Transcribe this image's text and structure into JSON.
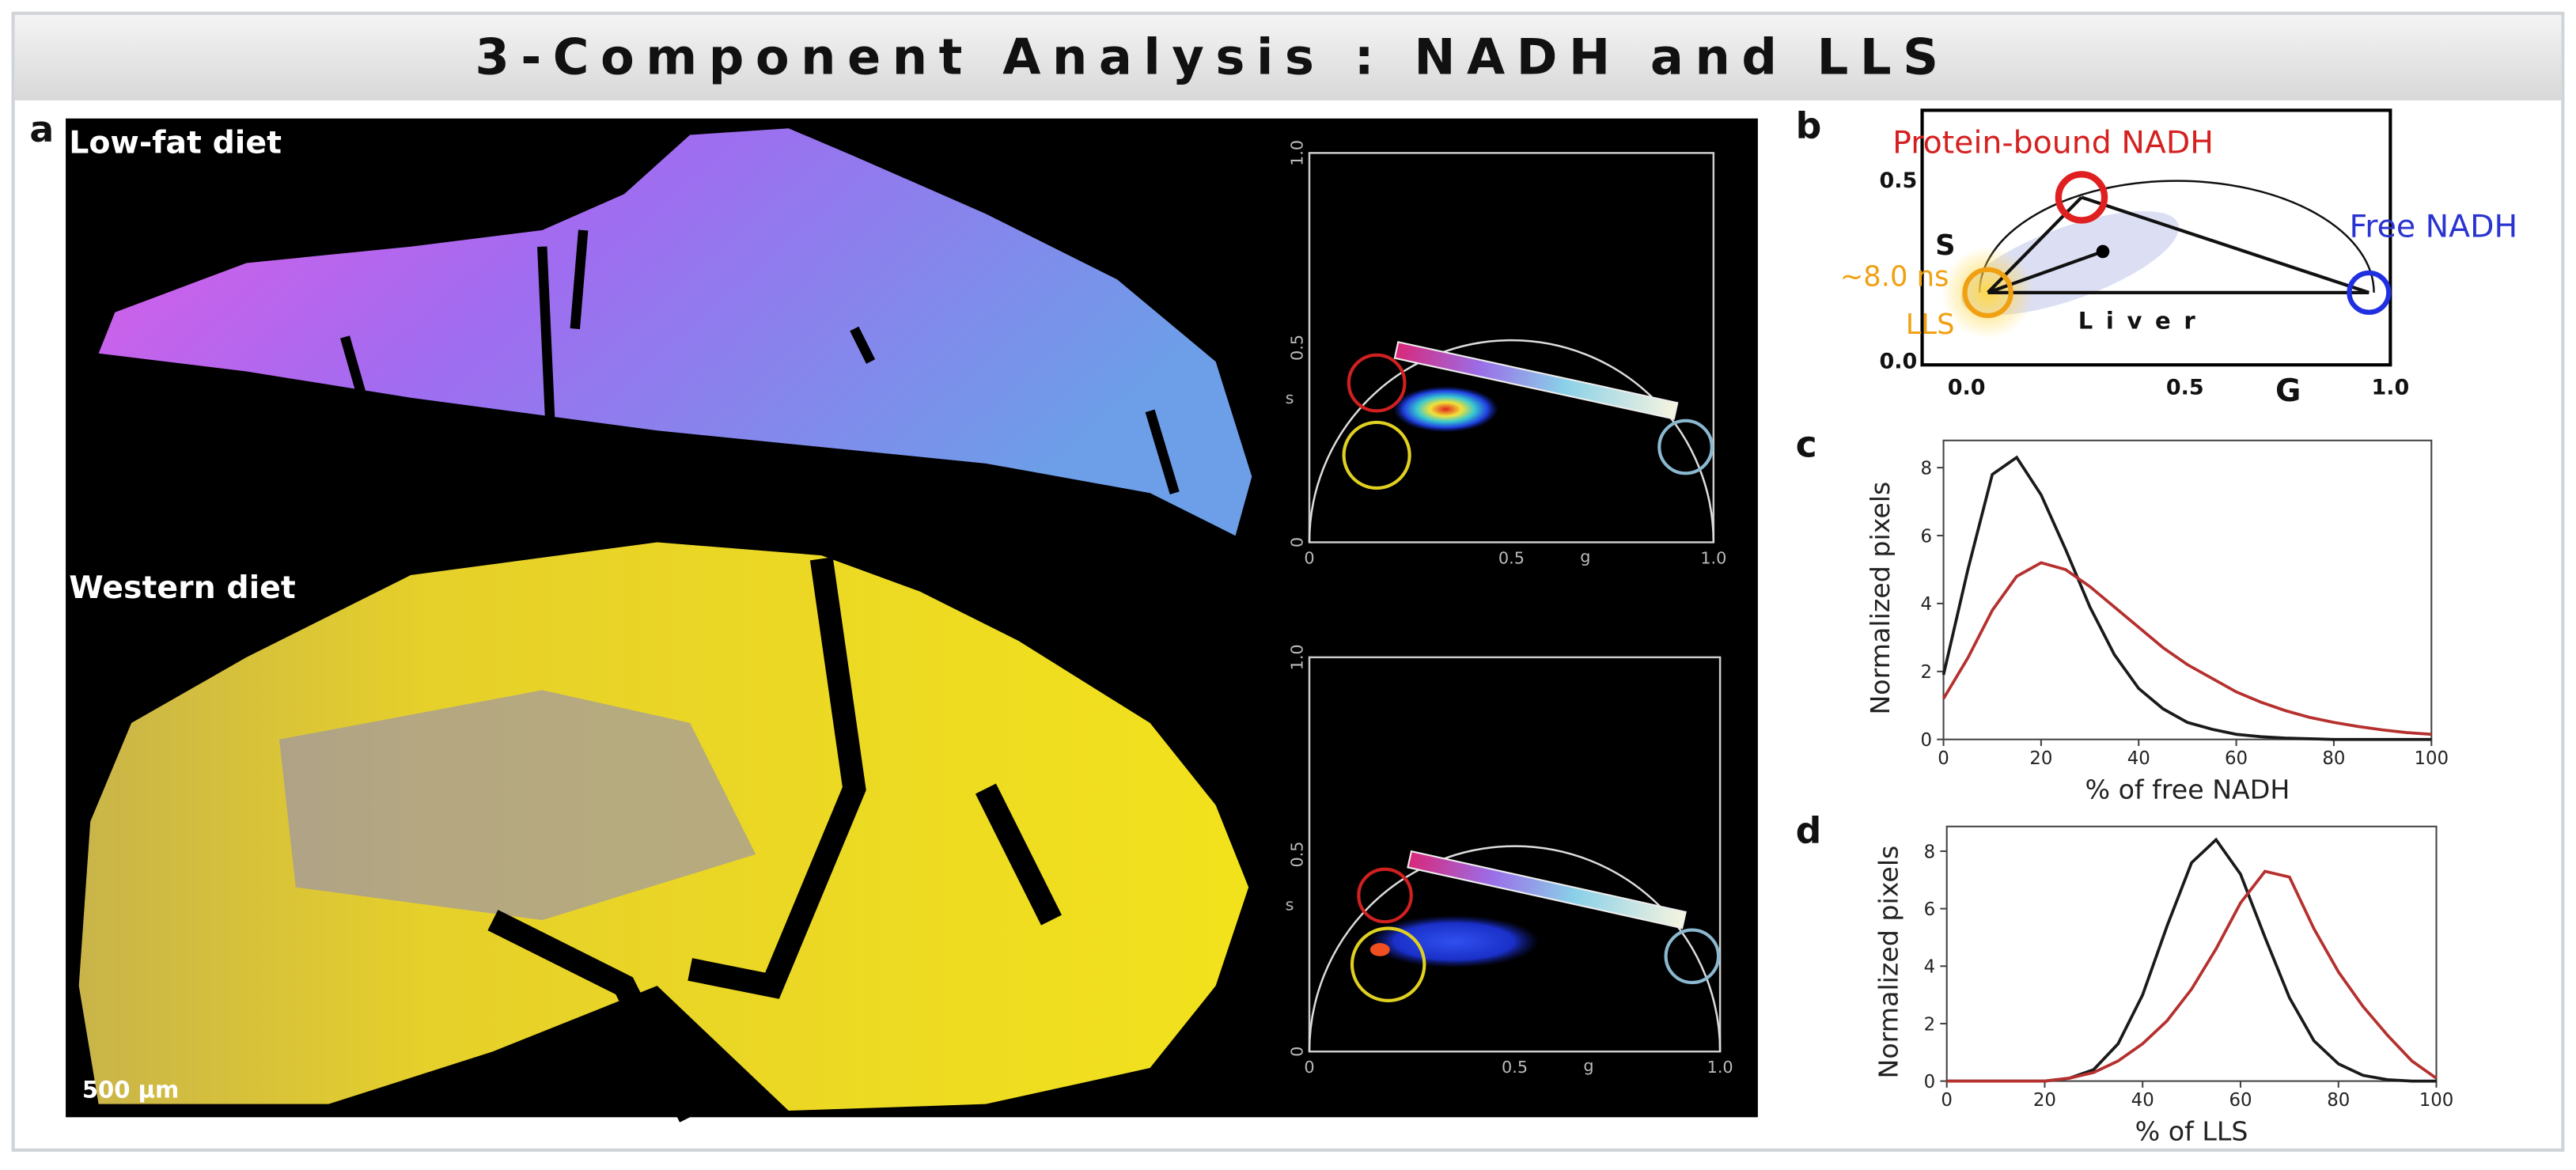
{
  "title": "3-Component Analysis : NADH and LLS",
  "panel_a": {
    "label": "a",
    "top_label": "Low-fat diet",
    "bottom_label": "Western diet",
    "scale_bar": "500 µm",
    "phasors": [
      {
        "y_ticks": [
          "0",
          "0.5",
          "1.0"
        ],
        "x_ticks": [
          "0",
          "0.5",
          "1.0"
        ],
        "y_label": "s",
        "x_label": "g"
      },
      {
        "y_ticks": [
          "0",
          "0.5",
          "1.0"
        ],
        "x_ticks": [
          "0",
          "0.5",
          "1.0"
        ],
        "y_label": "s",
        "x_label": "g"
      }
    ]
  },
  "panel_b": {
    "label": "b",
    "protein_bound": "Protein-bound NADH",
    "free": "Free NADH",
    "lifetime": "~8.0 ns",
    "lls": "LLS",
    "tissue": "Liver",
    "y_label": "S",
    "x_label": "G",
    "x_ticks": [
      "0.0",
      "0.5",
      "1.0"
    ],
    "y_ticks": [
      "0.0",
      "0.5"
    ]
  },
  "chart_data": [
    {
      "type": "line",
      "panel_label": "c",
      "ylabel": "Normalized pixels",
      "xlabel": "% of free NADH",
      "x": [
        0,
        5,
        10,
        15,
        20,
        25,
        30,
        35,
        40,
        45,
        50,
        55,
        60,
        65,
        70,
        75,
        80,
        85,
        90,
        95,
        100
      ],
      "series": [
        {
          "color": "#1a1a1a",
          "values": [
            1.9,
            5.0,
            7.8,
            8.3,
            7.2,
            5.6,
            3.9,
            2.5,
            1.5,
            0.9,
            0.5,
            0.3,
            0.15,
            0.08,
            0.04,
            0.02,
            0,
            0,
            0,
            0,
            0
          ]
        },
        {
          "color": "#b5302e",
          "values": [
            1.2,
            2.4,
            3.8,
            4.8,
            5.2,
            5.0,
            4.5,
            3.9,
            3.3,
            2.7,
            2.2,
            1.8,
            1.4,
            1.1,
            0.85,
            0.65,
            0.5,
            0.38,
            0.28,
            0.2,
            0.15
          ]
        }
      ],
      "xlim": [
        0,
        100
      ],
      "ylim": [
        0,
        8.8
      ],
      "xticks": [
        0,
        20,
        40,
        60,
        80,
        100
      ],
      "yticks": [
        0,
        2,
        4,
        6,
        8
      ]
    },
    {
      "type": "line",
      "panel_label": "d",
      "ylabel": "Normalized pixels",
      "xlabel": "% of LLS",
      "x": [
        0,
        5,
        10,
        15,
        20,
        25,
        30,
        35,
        40,
        45,
        50,
        55,
        60,
        65,
        70,
        75,
        80,
        85,
        90,
        95,
        100
      ],
      "series": [
        {
          "color": "#1a1a1a",
          "values": [
            0,
            0,
            0,
            0,
            0,
            0.1,
            0.4,
            1.3,
            3.0,
            5.4,
            7.6,
            8.4,
            7.2,
            5.0,
            2.9,
            1.4,
            0.6,
            0.2,
            0.05,
            0,
            0
          ]
        },
        {
          "color": "#b5302e",
          "values": [
            0,
            0,
            0,
            0,
            0,
            0.1,
            0.3,
            0.7,
            1.3,
            2.1,
            3.2,
            4.6,
            6.2,
            7.3,
            7.1,
            5.3,
            3.8,
            2.6,
            1.6,
            0.7,
            0.1
          ]
        }
      ],
      "xlim": [
        0,
        100
      ],
      "ylim": [
        0,
        8.86
      ],
      "xticks": [
        0,
        20,
        40,
        60,
        80,
        100
      ],
      "yticks": [
        0,
        2,
        4,
        6,
        8
      ]
    }
  ]
}
